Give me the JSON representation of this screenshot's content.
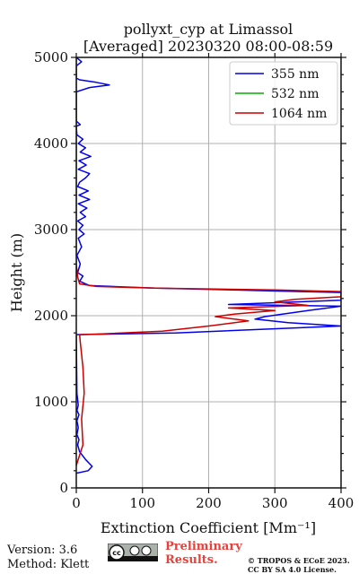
{
  "chart_data": {
    "type": "line",
    "title": [
      "pollyxt_cyp at Limassol",
      "[Averaged] 20230320 08:00-08:59"
    ],
    "xlabel": "Extinction Coefficient [Mm⁻¹]",
    "ylabel": "Height (m)",
    "xlim": [
      0,
      400
    ],
    "ylim": [
      0,
      5000
    ],
    "xticks": [
      0,
      100,
      200,
      300,
      400
    ],
    "yticks": [
      0,
      1000,
      2000,
      3000,
      4000,
      5000
    ],
    "grid": true,
    "legend_position": "top-right",
    "series": [
      {
        "name": "355 nm",
        "color": "#0000ee",
        "points": [
          [
            0,
            170
          ],
          [
            18,
            200
          ],
          [
            24,
            250
          ],
          [
            14,
            330
          ],
          [
            5,
            420
          ],
          [
            2,
            500
          ],
          [
            4,
            560
          ],
          [
            1,
            620
          ],
          [
            3,
            700
          ],
          [
            1,
            780
          ],
          [
            4,
            850
          ],
          [
            1,
            900
          ],
          [
            3,
            960
          ],
          [
            1,
            1100
          ],
          [
            0,
            1780
          ],
          [
            150,
            1800
          ],
          [
            400,
            1880
          ],
          [
            320,
            1920
          ],
          [
            270,
            1960
          ],
          [
            285,
            1990
          ],
          [
            350,
            2060
          ],
          [
            400,
            2110
          ],
          [
            230,
            2130
          ],
          [
            400,
            2180
          ],
          [
            400,
            2270
          ],
          [
            290,
            2290
          ],
          [
            120,
            2320
          ],
          [
            20,
            2350
          ],
          [
            5,
            2400
          ],
          [
            10,
            2460
          ],
          [
            2,
            2500
          ],
          [
            6,
            2600
          ],
          [
            1,
            2700
          ],
          [
            8,
            2800
          ],
          [
            3,
            2900
          ],
          [
            12,
            2950
          ],
          [
            4,
            3000
          ],
          [
            10,
            3050
          ],
          [
            2,
            3100
          ],
          [
            14,
            3150
          ],
          [
            6,
            3200
          ],
          [
            16,
            3250
          ],
          [
            3,
            3300
          ],
          [
            20,
            3350
          ],
          [
            4,
            3400
          ],
          [
            18,
            3450
          ],
          [
            2,
            3500
          ],
          [
            5,
            3550
          ],
          [
            14,
            3600
          ],
          [
            20,
            3650
          ],
          [
            3,
            3700
          ],
          [
            15,
            3750
          ],
          [
            4,
            3800
          ],
          [
            22,
            3850
          ],
          [
            6,
            3900
          ],
          [
            14,
            3950
          ],
          [
            3,
            4000
          ],
          [
            10,
            4050
          ],
          [
            1,
            4100
          ],
          [
            0,
            4200
          ],
          [
            6,
            4220
          ],
          [
            0,
            4260
          ],
          [
            0,
            4600
          ],
          [
            20,
            4650
          ],
          [
            50,
            4680
          ],
          [
            30,
            4710
          ],
          [
            5,
            4740
          ],
          [
            0,
            4760
          ],
          [
            0,
            4900
          ],
          [
            8,
            4950
          ],
          [
            0,
            5000
          ]
        ]
      },
      {
        "name": "532 nm",
        "color": "#00b000",
        "points": []
      },
      {
        "name": "1064 nm",
        "color": "#cc0000",
        "points": [
          [
            0,
            260
          ],
          [
            10,
            500
          ],
          [
            8,
            800
          ],
          [
            12,
            1100
          ],
          [
            10,
            1400
          ],
          [
            6,
            1700
          ],
          [
            5,
            1780
          ],
          [
            40,
            1790
          ],
          [
            130,
            1820
          ],
          [
            200,
            1880
          ],
          [
            260,
            1940
          ],
          [
            210,
            1990
          ],
          [
            240,
            2020
          ],
          [
            300,
            2060
          ],
          [
            230,
            2090
          ],
          [
            350,
            2120
          ],
          [
            300,
            2160
          ],
          [
            330,
            2190
          ],
          [
            400,
            2220
          ],
          [
            400,
            2280
          ],
          [
            300,
            2300
          ],
          [
            120,
            2320
          ],
          [
            30,
            2340
          ],
          [
            5,
            2370
          ],
          [
            2,
            2450
          ],
          [
            0,
            2600
          ],
          [
            0,
            3500
          ],
          [
            0,
            4500
          ],
          [
            0,
            5000
          ]
        ]
      }
    ]
  },
  "footer": {
    "version": "Version: 3.6",
    "method": "Method: Klett",
    "preliminary_line1": "Preliminary",
    "preliminary_line2": "Results.",
    "copyright_line1": "© TROPOS & ECoE 2023.",
    "copyright_line2": "CC BY SA 4.0 License.",
    "cc_badge_icon": "cc-by-sa-icon"
  }
}
